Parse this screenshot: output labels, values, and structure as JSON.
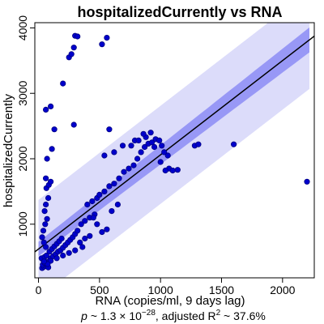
{
  "chart_data": {
    "type": "scatter",
    "title": "hospitalizedCurrently vs RNA",
    "xlabel": "RNA (copies/ml, 9 days lag)",
    "ylabel": "hospitalizedCurrently",
    "xlim": [
      -30,
      2260
    ],
    "ylim": [
      180,
      4080
    ],
    "x_ticks": [
      0,
      500,
      1000,
      1500,
      2000
    ],
    "y_ticks": [
      1000,
      2000,
      3000,
      4000
    ],
    "footnote": {
      "p_prefix": "p",
      "p_mid": " ~ 1.3 × 10",
      "p_exp": "−28",
      "r2_prefix": ", adjusted R",
      "r2_exp": "2",
      "r2_value": " ~ 37.6%"
    },
    "colors": {
      "points": "#0000cc",
      "point_edge": "#000080",
      "fit_line": "#000000",
      "confidence_band": "#8c8cf5",
      "prediction_band": "#dcdcfa",
      "frame": "#000000"
    },
    "fit": {
      "intercept": 620,
      "slope": 1.44,
      "ci_halfwidth_at_xmin": 110,
      "ci_halfwidth_at_xmax": 190,
      "pi_halfwidth": 750,
      "x_range": [
        0,
        2220
      ]
    },
    "points": [
      {
        "x": 30,
        "y": 330
      },
      {
        "x": 45,
        "y": 350
      },
      {
        "x": 60,
        "y": 360
      },
      {
        "x": 80,
        "y": 340
      },
      {
        "x": 35,
        "y": 380
      },
      {
        "x": 55,
        "y": 400
      },
      {
        "x": 70,
        "y": 420
      },
      {
        "x": 40,
        "y": 450
      },
      {
        "x": 90,
        "y": 440
      },
      {
        "x": 25,
        "y": 480
      },
      {
        "x": 50,
        "y": 500
      },
      {
        "x": 65,
        "y": 520
      },
      {
        "x": 100,
        "y": 480
      },
      {
        "x": 120,
        "y": 510
      },
      {
        "x": 140,
        "y": 540
      },
      {
        "x": 160,
        "y": 580
      },
      {
        "x": 180,
        "y": 600
      },
      {
        "x": 200,
        "y": 640
      },
      {
        "x": 220,
        "y": 680
      },
      {
        "x": 240,
        "y": 720
      },
      {
        "x": 260,
        "y": 760
      },
      {
        "x": 280,
        "y": 800
      },
      {
        "x": 300,
        "y": 850
      },
      {
        "x": 320,
        "y": 900
      },
      {
        "x": 90,
        "y": 580
      },
      {
        "x": 110,
        "y": 620
      },
      {
        "x": 130,
        "y": 660
      },
      {
        "x": 150,
        "y": 700
      },
      {
        "x": 170,
        "y": 740
      },
      {
        "x": 190,
        "y": 780
      },
      {
        "x": 60,
        "y": 650
      },
      {
        "x": 45,
        "y": 720
      },
      {
        "x": 30,
        "y": 800
      },
      {
        "x": 40,
        "y": 900
      },
      {
        "x": 55,
        "y": 1000
      },
      {
        "x": 70,
        "y": 1080
      },
      {
        "x": 50,
        "y": 1200
      },
      {
        "x": 60,
        "y": 1300
      },
      {
        "x": 80,
        "y": 1400
      },
      {
        "x": 65,
        "y": 1550
      },
      {
        "x": 85,
        "y": 1600
      },
      {
        "x": 100,
        "y": 1650
      },
      {
        "x": 60,
        "y": 1700
      },
      {
        "x": 70,
        "y": 2000
      },
      {
        "x": 110,
        "y": 2150
      },
      {
        "x": 130,
        "y": 2450
      },
      {
        "x": 60,
        "y": 2750
      },
      {
        "x": 100,
        "y": 2800
      },
      {
        "x": 200,
        "y": 3150
      },
      {
        "x": 250,
        "y": 3550
      },
      {
        "x": 270,
        "y": 3600
      },
      {
        "x": 290,
        "y": 3700
      },
      {
        "x": 300,
        "y": 3880
      },
      {
        "x": 320,
        "y": 3870
      },
      {
        "x": 520,
        "y": 3750
      },
      {
        "x": 560,
        "y": 3850
      },
      {
        "x": 290,
        "y": 2520
      },
      {
        "x": 350,
        "y": 1000
      },
      {
        "x": 380,
        "y": 1050
      },
      {
        "x": 420,
        "y": 1100
      },
      {
        "x": 460,
        "y": 1150
      },
      {
        "x": 400,
        "y": 1300
      },
      {
        "x": 440,
        "y": 1350
      },
      {
        "x": 480,
        "y": 1400
      },
      {
        "x": 500,
        "y": 1450
      },
      {
        "x": 540,
        "y": 1500
      },
      {
        "x": 580,
        "y": 1580
      },
      {
        "x": 620,
        "y": 1620
      },
      {
        "x": 660,
        "y": 1700
      },
      {
        "x": 700,
        "y": 1800
      },
      {
        "x": 740,
        "y": 1850
      },
      {
        "x": 780,
        "y": 1900
      },
      {
        "x": 810,
        "y": 2000
      },
      {
        "x": 840,
        "y": 2100
      },
      {
        "x": 870,
        "y": 2180
      },
      {
        "x": 900,
        "y": 2230
      },
      {
        "x": 930,
        "y": 2250
      },
      {
        "x": 960,
        "y": 2300
      },
      {
        "x": 990,
        "y": 2280
      },
      {
        "x": 1010,
        "y": 2200
      },
      {
        "x": 880,
        "y": 2330
      },
      {
        "x": 920,
        "y": 2400
      },
      {
        "x": 860,
        "y": 2380
      },
      {
        "x": 950,
        "y": 2180
      },
      {
        "x": 1030,
        "y": 2100
      },
      {
        "x": 1060,
        "y": 2050
      },
      {
        "x": 1000,
        "y": 1950
      },
      {
        "x": 1070,
        "y": 1850
      },
      {
        "x": 1040,
        "y": 1820
      },
      {
        "x": 1100,
        "y": 1820
      },
      {
        "x": 1140,
        "y": 1830
      },
      {
        "x": 1280,
        "y": 2200
      },
      {
        "x": 1310,
        "y": 2220
      },
      {
        "x": 1600,
        "y": 2220
      },
      {
        "x": 2200,
        "y": 1650
      },
      {
        "x": 760,
        "y": 2200
      },
      {
        "x": 790,
        "y": 2280
      },
      {
        "x": 820,
        "y": 2280
      },
      {
        "x": 690,
        "y": 2200
      },
      {
        "x": 620,
        "y": 2100
      },
      {
        "x": 580,
        "y": 2450
      },
      {
        "x": 540,
        "y": 2050
      },
      {
        "x": 450,
        "y": 1100
      },
      {
        "x": 480,
        "y": 1000
      },
      {
        "x": 600,
        "y": 1200
      },
      {
        "x": 650,
        "y": 1300
      },
      {
        "x": 560,
        "y": 920
      },
      {
        "x": 520,
        "y": 880
      },
      {
        "x": 420,
        "y": 820
      },
      {
        "x": 380,
        "y": 780
      },
      {
        "x": 340,
        "y": 720
      },
      {
        "x": 360,
        "y": 650
      },
      {
        "x": 300,
        "y": 600
      },
      {
        "x": 250,
        "y": 560
      },
      {
        "x": 200,
        "y": 520
      },
      {
        "x": 150,
        "y": 480
      },
      {
        "x": 100,
        "y": 440
      },
      {
        "x": 50,
        "y": 410
      },
      {
        "x": 75,
        "y": 390
      },
      {
        "x": 45,
        "y": 430
      }
    ]
  }
}
